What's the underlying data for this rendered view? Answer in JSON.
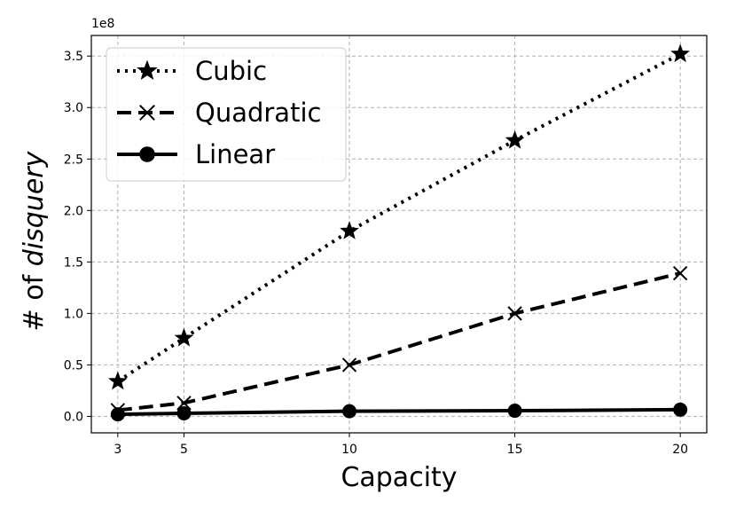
{
  "chart_data": {
    "type": "line",
    "xlabel": "Capacity",
    "ylabel_prefix": "# of ",
    "ylabel_italic": "disquery",
    "y_offset_label": "1e8",
    "x_ticks": [
      3,
      5,
      10,
      15,
      20
    ],
    "y_ticks": [
      0.0,
      0.5,
      1.0,
      1.5,
      2.0,
      2.5,
      3.0,
      3.5
    ],
    "y_tick_labels": [
      "0.0",
      "0.5",
      "1.0",
      "1.5",
      "2.0",
      "2.5",
      "3.0",
      "3.5"
    ],
    "xlim": [
      2.2,
      20.8
    ],
    "ylim": [
      -0.16,
      3.7
    ],
    "grid": true,
    "legend_position": "top-left",
    "x": [
      3,
      5,
      10,
      15,
      20
    ],
    "series": [
      {
        "name": "Cubic",
        "marker": "star",
        "line_style": "dotted",
        "values": [
          0.34,
          0.76,
          1.8,
          2.68,
          3.52
        ]
      },
      {
        "name": "Quadratic",
        "marker": "x",
        "line_style": "dashed",
        "values": [
          0.06,
          0.13,
          0.5,
          1.0,
          1.39
        ]
      },
      {
        "name": "Linear",
        "marker": "circle",
        "line_style": "solid",
        "values": [
          0.02,
          0.03,
          0.05,
          0.055,
          0.065
        ]
      }
    ],
    "colors": {
      "line": "#000000",
      "grid": "#b0b0b0",
      "background": "#ffffff"
    }
  }
}
